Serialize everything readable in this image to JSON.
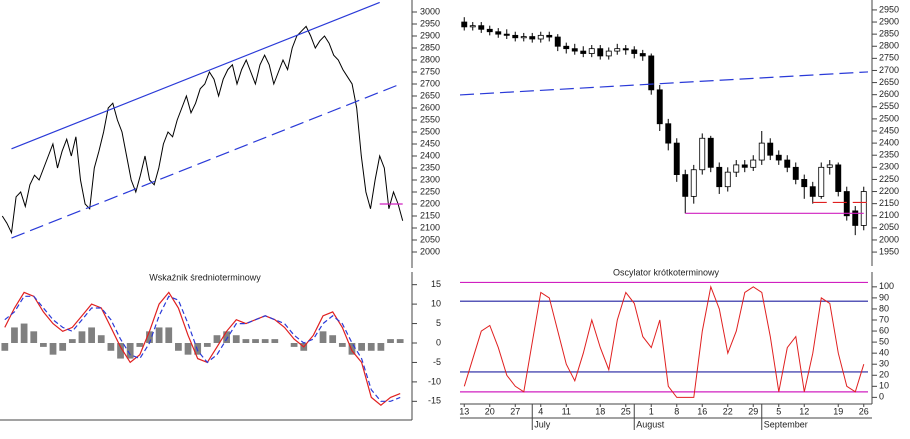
{
  "chart_data": [
    {
      "type": "line",
      "color": "#000000",
      "values": [
        2150,
        2120,
        2080,
        2230,
        2250,
        2190,
        2280,
        2320,
        2300,
        2350,
        2400,
        2450,
        2350,
        2420,
        2470,
        2400,
        2480,
        2300,
        2200,
        2180,
        2350,
        2420,
        2500,
        2600,
        2620,
        2550,
        2500,
        2400,
        2300,
        2250,
        2320,
        2400,
        2300,
        2280,
        2350,
        2450,
        2500,
        2480,
        2550,
        2600,
        2650,
        2580,
        2620,
        2680,
        2700,
        2750,
        2720,
        2650,
        2720,
        2760,
        2780,
        2700,
        2760,
        2800,
        2750,
        2700,
        2780,
        2820,
        2780,
        2700,
        2750,
        2800,
        2760,
        2850,
        2900,
        2920,
        2940,
        2900,
        2850,
        2880,
        2900,
        2870,
        2820,
        2800,
        2760,
        2730,
        2700,
        2600,
        2400,
        2250,
        2180,
        2300,
        2400,
        2350,
        2180,
        2250,
        2200,
        2130
      ],
      "ylim": [
        1950,
        3050
      ],
      "yticks": [
        2000,
        2050,
        2100,
        2150,
        2200,
        2250,
        2300,
        2350,
        2400,
        2450,
        2500,
        2550,
        2600,
        2650,
        2700,
        2750,
        2800,
        2850,
        2900,
        2950,
        3000
      ],
      "lines": [
        {
          "x": [
            2,
            82
          ],
          "y": [
            2430,
            3040
          ],
          "color": "#2a3ad8",
          "dashed": false
        },
        {
          "x": [
            2,
            86
          ],
          "y": [
            2058,
            2696
          ],
          "color": "#2a3ad8",
          "dashed": true
        },
        {
          "x": [
            82,
            87
          ],
          "y": [
            2200,
            2200
          ],
          "color": "#d020c0",
          "dashed": false
        }
      ]
    },
    {
      "type": "indicator",
      "title": "Wskaźnik średnioterminowy",
      "series": [
        {
          "kind": "bar",
          "color": "#808080",
          "values": [
            -2,
            4,
            5,
            3,
            -1,
            -3,
            -2,
            1,
            3,
            4,
            2,
            -2,
            -4,
            -4,
            -1,
            3,
            4,
            4,
            -2,
            -3,
            -3,
            -1,
            2,
            3,
            2,
            1,
            1,
            1,
            1,
            0,
            -1,
            -2,
            0,
            3,
            2,
            -1,
            -3,
            -2,
            -2,
            -2,
            1,
            1
          ]
        },
        {
          "kind": "line",
          "color": "#e02020",
          "dashed": false,
          "values": [
            4,
            9,
            13,
            12,
            8,
            5,
            3,
            4,
            7,
            10,
            9,
            4,
            -1,
            -5,
            -3,
            3,
            10,
            13,
            9,
            2,
            -4,
            -5,
            -1,
            3,
            6,
            5,
            6,
            7,
            6,
            4,
            1,
            -1,
            2,
            7,
            8,
            4,
            -2,
            -5,
            -14,
            -16,
            -14,
            -13
          ]
        },
        {
          "kind": "line",
          "color": "#2a3ad8",
          "dashed": true,
          "values": [
            6,
            8,
            12,
            12,
            9,
            6,
            4,
            3,
            6,
            9,
            9,
            6,
            1,
            -3,
            -4,
            0,
            7,
            12,
            11,
            5,
            -2,
            -5,
            -3,
            1,
            5,
            5,
            6,
            7,
            6,
            5,
            2,
            0,
            1,
            5,
            7,
            5,
            0,
            -4,
            -12,
            -15,
            -15,
            -14
          ]
        }
      ],
      "ylim": [
        -18,
        18
      ],
      "yticks": [
        15,
        10,
        5,
        0,
        -5,
        -10,
        -15
      ]
    },
    {
      "type": "candlestick",
      "up_color": "#ffffff",
      "down_color": "#000000",
      "open": [
        2900,
        2880,
        2885,
        2870,
        2860,
        2850,
        2845,
        2835,
        2840,
        2830,
        2845,
        2838,
        2800,
        2790,
        2780,
        2770,
        2790,
        2760,
        2780,
        2790,
        2785,
        2770,
        2760,
        2620,
        2480,
        2400,
        2270,
        2180,
        2290,
        2420,
        2300,
        2220,
        2280,
        2310,
        2300,
        2330,
        2400,
        2350,
        2330,
        2300,
        2250,
        2220,
        2180,
        2300,
        2310,
        2200,
        2120,
        2060
      ],
      "high": [
        2920,
        2900,
        2900,
        2885,
        2875,
        2870,
        2860,
        2855,
        2855,
        2860,
        2860,
        2850,
        2815,
        2810,
        2800,
        2805,
        2805,
        2795,
        2810,
        2805,
        2800,
        2785,
        2770,
        2640,
        2500,
        2420,
        2290,
        2310,
        2440,
        2430,
        2320,
        2300,
        2330,
        2330,
        2350,
        2450,
        2420,
        2370,
        2350,
        2320,
        2270,
        2240,
        2320,
        2330,
        2320,
        2220,
        2140,
        2220
      ],
      "low": [
        2865,
        2865,
        2855,
        2845,
        2835,
        2830,
        2820,
        2820,
        2815,
        2815,
        2820,
        2780,
        2770,
        2765,
        2755,
        2755,
        2745,
        2745,
        2765,
        2765,
        2750,
        2740,
        2600,
        2450,
        2370,
        2240,
        2110,
        2150,
        2270,
        2280,
        2190,
        2200,
        2260,
        2280,
        2285,
        2310,
        2330,
        2310,
        2280,
        2230,
        2170,
        2150,
        2170,
        2270,
        2180,
        2080,
        2020,
        2040
      ],
      "close": [
        2880,
        2885,
        2870,
        2860,
        2850,
        2845,
        2835,
        2840,
        2830,
        2845,
        2838,
        2800,
        2790,
        2780,
        2770,
        2790,
        2760,
        2780,
        2790,
        2785,
        2770,
        2760,
        2620,
        2480,
        2400,
        2270,
        2180,
        2290,
        2420,
        2300,
        2220,
        2280,
        2310,
        2300,
        2330,
        2400,
        2350,
        2330,
        2300,
        2250,
        2220,
        2180,
        2300,
        2310,
        2200,
        2100,
        2060,
        2200
      ],
      "ylim": [
        1909,
        2991
      ],
      "yticks": [
        1950,
        2000,
        2050,
        2100,
        2150,
        2200,
        2250,
        2300,
        2350,
        2400,
        2450,
        2500,
        2550,
        2600,
        2650,
        2700,
        2750,
        2800,
        2850,
        2900,
        2950
      ],
      "lines": [
        {
          "x": [
            -0.5,
            47.5
          ],
          "y": [
            2599,
            2694
          ],
          "color": "#2a3ad8",
          "dashed": true
        },
        {
          "x": [
            26,
            47
          ],
          "y": [
            2110,
            2110
          ],
          "color": "#d020c0",
          "dashed": false
        },
        {
          "x": [
            41,
            47.5
          ],
          "y": [
            2155,
            2155
          ],
          "color": "#e02020",
          "dashed": true
        }
      ]
    },
    {
      "type": "line",
      "title": "Oscylator krótkoterminowy",
      "color": "#e02020",
      "values": [
        10,
        35,
        60,
        65,
        45,
        20,
        10,
        5,
        50,
        95,
        90,
        60,
        30,
        15,
        40,
        70,
        45,
        25,
        70,
        95,
        85,
        55,
        45,
        70,
        10,
        0,
        0,
        0,
        60,
        100,
        80,
        40,
        60,
        95,
        100,
        95,
        55,
        5,
        45,
        55,
        5,
        40,
        90,
        85,
        40,
        10,
        5,
        30
      ],
      "ylim": [
        -6,
        108
      ],
      "yticks": [
        0,
        10,
        20,
        30,
        40,
        50,
        60,
        70,
        80,
        90,
        100
      ],
      "hlines": [
        {
          "value": 104,
          "color": "#d020c0"
        },
        {
          "value": 87,
          "color": "#2020a0"
        },
        {
          "value": 23,
          "color": "#2020a0"
        },
        {
          "value": 5,
          "color": "#d020c0"
        }
      ],
      "xticks": [
        {
          "value": 0,
          "label": "13"
        },
        {
          "value": 3,
          "label": "20"
        },
        {
          "value": 6,
          "label": "27"
        },
        {
          "value": 9,
          "label": "4"
        },
        {
          "value": 12,
          "label": "11"
        },
        {
          "value": 16,
          "label": "18"
        },
        {
          "value": 19,
          "label": "25"
        },
        {
          "value": 22,
          "label": "1"
        },
        {
          "value": 25,
          "label": "8"
        },
        {
          "value": 28,
          "label": "16"
        },
        {
          "value": 31,
          "label": "22"
        },
        {
          "value": 34,
          "label": "29"
        },
        {
          "value": 37,
          "label": "5"
        },
        {
          "value": 40,
          "label": "12"
        },
        {
          "value": 44,
          "label": "19"
        },
        {
          "value": 47,
          "label": "26"
        }
      ],
      "months": [
        {
          "value": 8,
          "label": "July"
        },
        {
          "value": 20,
          "label": "August"
        },
        {
          "value": 35,
          "label": "September"
        }
      ]
    }
  ]
}
